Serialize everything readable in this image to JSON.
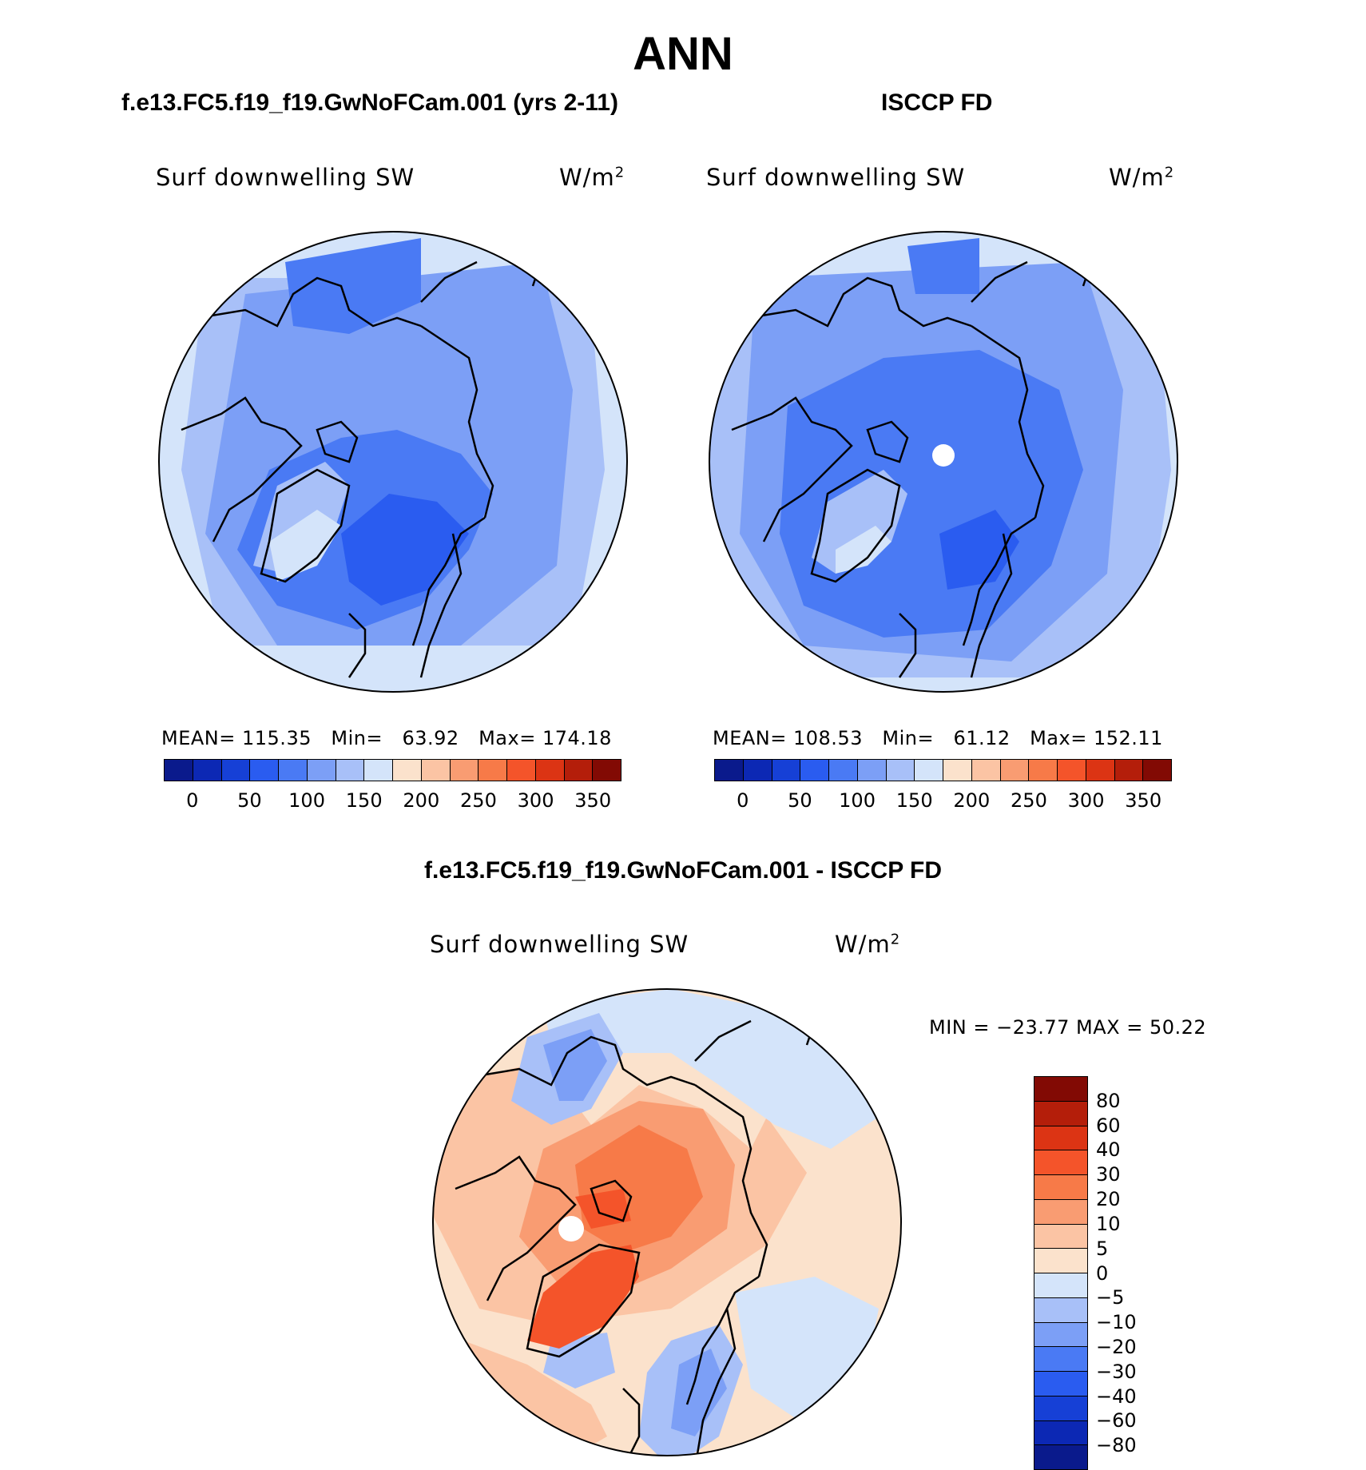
{
  "title": "ANN",
  "panels": [
    {
      "title": "f.e13.FC5.f19_f19.GwNoFCam.001 (yrs 2-11)",
      "variable": "Surf downwelling SW",
      "units_base": "W/m",
      "units_sup": "2",
      "stats": {
        "mean_label": "MEAN=",
        "mean": "115.35",
        "min_label": "Min=",
        "min": "63.92",
        "max_label": "Max=",
        "max": "174.18"
      }
    },
    {
      "title": "ISCCP FD",
      "variable": "Surf downwelling SW",
      "units_base": "W/m",
      "units_sup": "2",
      "stats": {
        "mean_label": "MEAN=",
        "mean": "108.53",
        "min_label": "Min=",
        "min": "61.12",
        "max_label": "Max=",
        "max": "152.11"
      }
    },
    {
      "title": "f.e13.FC5.f19_f19.GwNoFCam.001 - ISCCP FD",
      "variable": "Surf downwelling SW",
      "units_base": "W/m",
      "units_sup": "2",
      "stats_text": "MIN = −23.77 MAX =  50.22"
    }
  ],
  "colorbar_abs": {
    "colors": [
      "#0a1a8c",
      "#0c28b4",
      "#1640d6",
      "#2a5cf0",
      "#4a7af4",
      "#7c9ff6",
      "#a8c0f8",
      "#d4e4fa",
      "#fbe2cc",
      "#fbc4a4",
      "#f99c72",
      "#f77a48",
      "#f4542a",
      "#dc3414",
      "#b41e0a",
      "#820a04"
    ],
    "ticks": [
      "0",
      "50",
      "100",
      "150",
      "200",
      "250",
      "300",
      "350"
    ]
  },
  "colorbar_diff": {
    "colors": [
      "#820a04",
      "#b41e0a",
      "#dc3414",
      "#f4542a",
      "#f77a48",
      "#f99c72",
      "#fbc4a4",
      "#fbe2cc",
      "#d4e4fa",
      "#a8c0f8",
      "#7c9ff6",
      "#4a7af4",
      "#2a5cf0",
      "#1640d6",
      "#0c28b4",
      "#0a1a8c"
    ],
    "ticks": [
      "80",
      "60",
      "40",
      "30",
      "20",
      "10",
      "5",
      "0",
      "−5",
      "−10",
      "−20",
      "−30",
      "−40",
      "−60",
      "−80"
    ]
  },
  "map_colors": {
    "ocean_low": "#d4e4fa",
    "level_150": "#a8c0f8",
    "level_125": "#7c9ff6",
    "level_100": "#4a7af4",
    "level_75": "#2a5cf0",
    "diff_warm1": "#fbe2cc",
    "diff_warm2": "#fbc4a4",
    "diff_warm3": "#f99c72",
    "diff_warm4": "#f77a48",
    "diff_warm5": "#f4542a",
    "diff_cool1": "#d4e4fa",
    "diff_cool2": "#a8c0f8",
    "diff_cool3": "#7c9ff6",
    "missing": "#ffffff"
  }
}
